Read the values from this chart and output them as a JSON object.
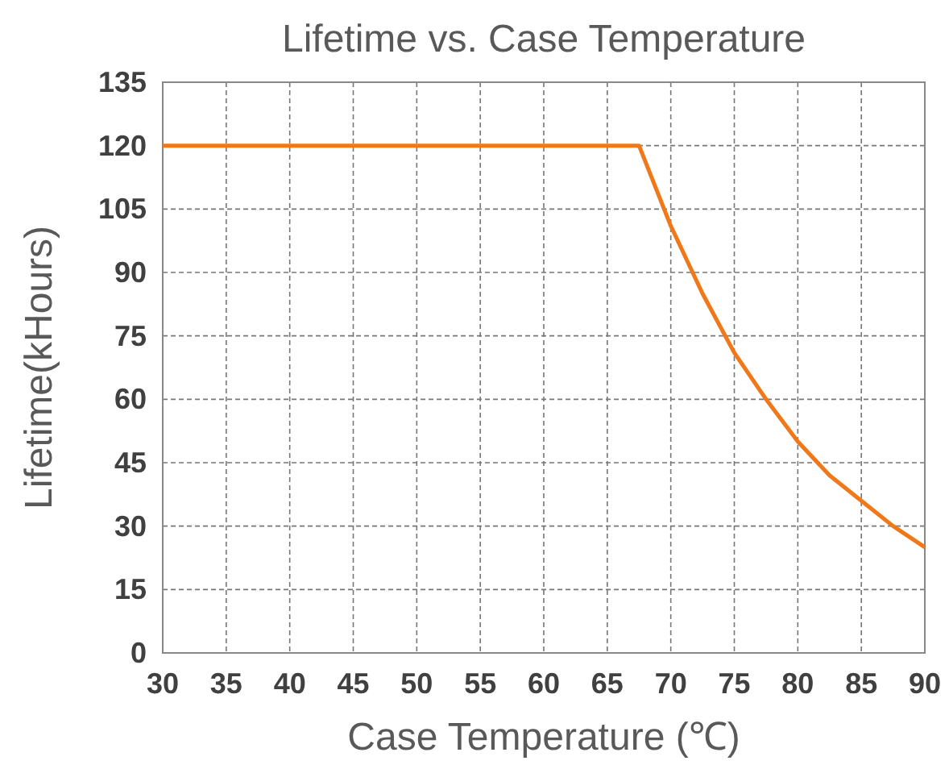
{
  "chart_data": {
    "type": "line",
    "title": "Lifetime vs. Case Temperature",
    "xlabel": "Case Temperature (℃)",
    "ylabel": "Lifetime(kHours)",
    "x": [
      30,
      67.5,
      70,
      72.5,
      75,
      77.5,
      80,
      82.5,
      85,
      87.5,
      90
    ],
    "series": [
      {
        "color": "#f07818",
        "values": [
          120,
          120,
          101,
          85,
          71,
          60,
          50,
          42,
          36,
          30,
          25
        ]
      }
    ],
    "xlim": [
      30,
      90
    ],
    "xticks": [
      30,
      35,
      40,
      45,
      50,
      55,
      60,
      65,
      70,
      75,
      80,
      85,
      90
    ],
    "ylim": [
      0,
      135
    ],
    "yticks": [
      0,
      15,
      30,
      45,
      60,
      75,
      90,
      105,
      120,
      135
    ],
    "grid": true,
    "line_style": "solid",
    "marker": "none"
  }
}
